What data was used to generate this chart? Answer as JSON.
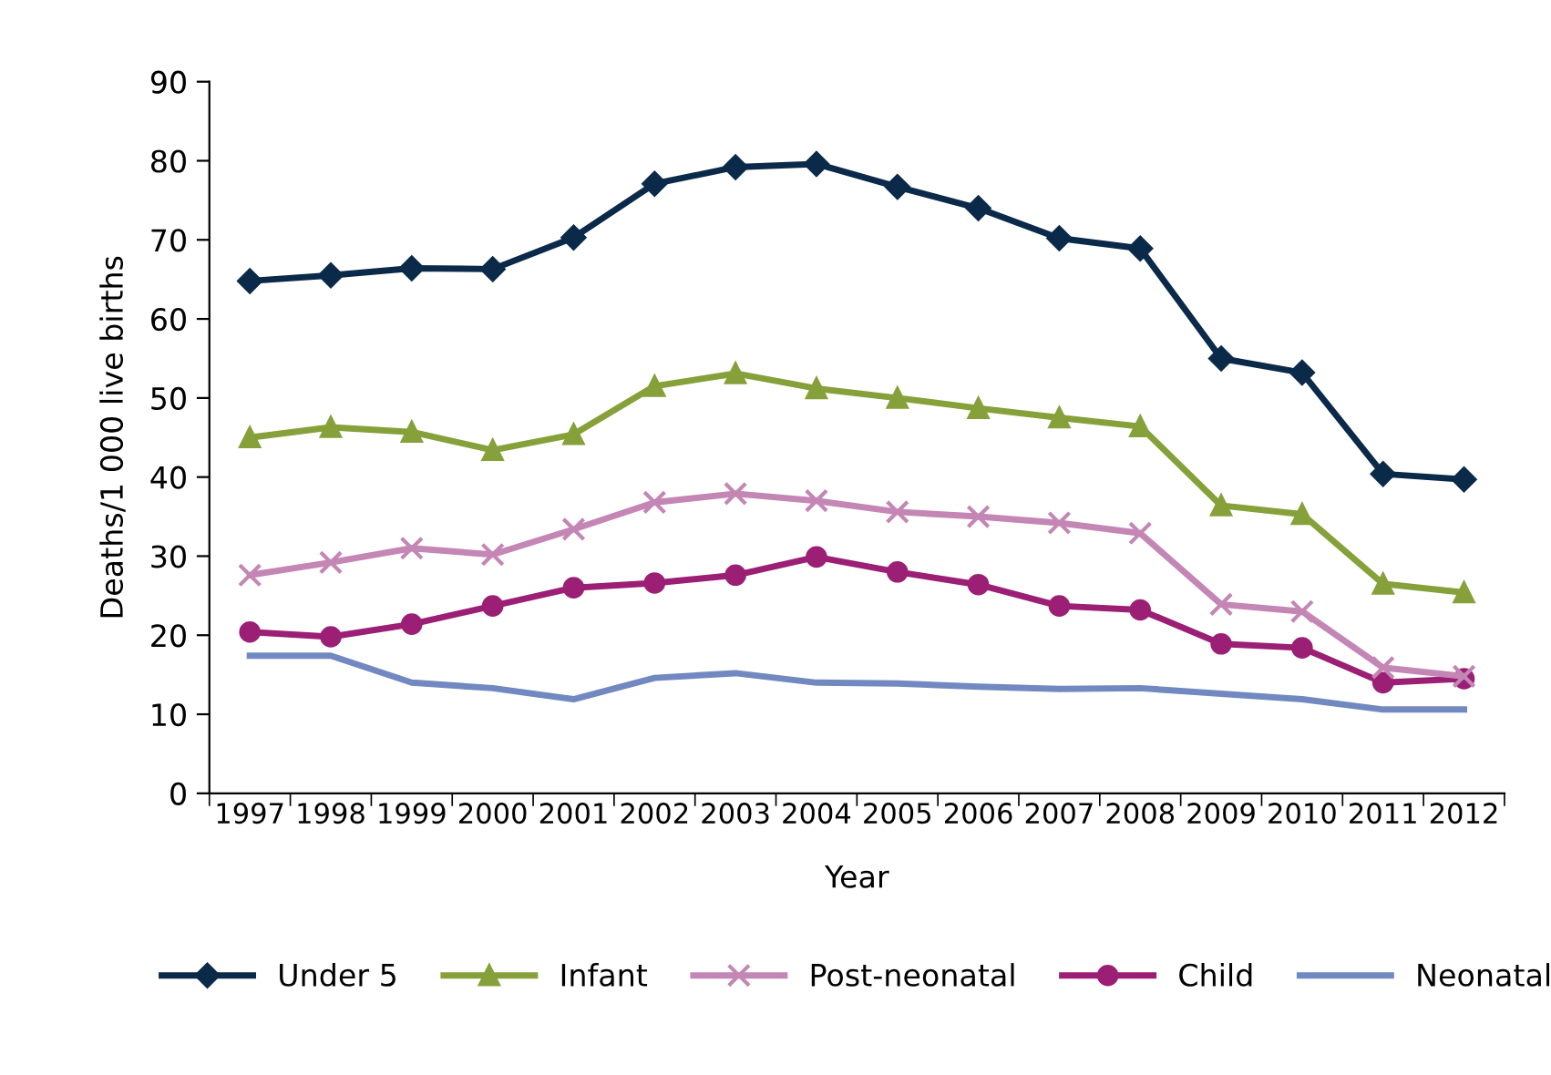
{
  "chart_data": {
    "type": "line",
    "xlabel": "Year",
    "ylabel": "Deaths/1 000 live births",
    "categories": [
      "1997",
      "1998",
      "1999",
      "2000",
      "2001",
      "2002",
      "2003",
      "2004",
      "2005",
      "2006",
      "2007",
      "2008",
      "2009",
      "2010",
      "2011",
      "2012"
    ],
    "ylim": [
      0,
      90
    ],
    "yticks": [
      0,
      10,
      20,
      30,
      40,
      50,
      60,
      70,
      80,
      90
    ],
    "grid": false,
    "legend": "bottom",
    "line_style": "solid",
    "series": [
      {
        "name": "Under 5",
        "color": "#0b2a4a",
        "marker": "diamond",
        "values": [
          64.8,
          65.5,
          66.4,
          66.3,
          70.3,
          77.1,
          79.2,
          79.6,
          76.7,
          74.0,
          70.2,
          68.9,
          55.0,
          53.2,
          40.4,
          39.7
        ]
      },
      {
        "name": "Infant",
        "color": "#86a03a",
        "marker": "triangle",
        "values": [
          45.0,
          46.3,
          45.7,
          43.4,
          45.4,
          51.5,
          53.1,
          51.2,
          50.0,
          48.7,
          47.5,
          46.4,
          36.4,
          35.3,
          26.5,
          25.4
        ]
      },
      {
        "name": "Post-neonatal",
        "color": "#c486b4",
        "marker": "cross",
        "values": [
          27.6,
          29.2,
          31.0,
          30.2,
          33.4,
          36.8,
          37.9,
          37.0,
          35.6,
          35.0,
          34.2,
          32.9,
          23.9,
          23.0,
          15.9,
          14.8
        ]
      },
      {
        "name": "Child",
        "color": "#9b1f74",
        "marker": "circle",
        "values": [
          20.4,
          19.8,
          21.4,
          23.7,
          26.0,
          26.6,
          27.6,
          29.9,
          28.0,
          26.4,
          23.7,
          23.2,
          18.9,
          18.4,
          14.0,
          14.5
        ]
      },
      {
        "name": "Neonatal",
        "color": "#7189c0",
        "marker": "none",
        "values": [
          17.4,
          17.4,
          14.0,
          13.3,
          11.9,
          14.6,
          15.2,
          14.0,
          13.9,
          13.5,
          13.2,
          13.3,
          12.6,
          11.9,
          10.6,
          10.6
        ]
      }
    ]
  }
}
